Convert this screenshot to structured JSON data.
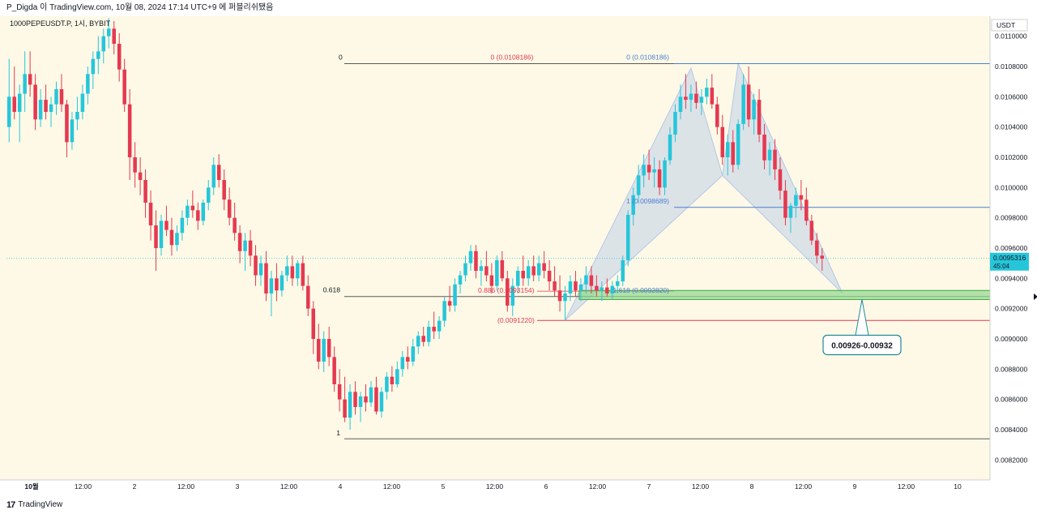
{
  "header": {
    "publish_line": "P_Digda 이 TradingView.com, 10월 08, 2024 17:14 UTC+9 에 퍼블리쉬됐음"
  },
  "footer": {
    "logo_mark": "17",
    "brand": "TradingView"
  },
  "colors": {
    "background": "#fdf9e6",
    "up": "#26c6da",
    "down": "#e53950",
    "pattern_fill": "#b3c8e8",
    "zone_fill": "#8fd98f",
    "fib_line": "#5b5b5b",
    "blue_level": "#4a7fd4",
    "red_level": "#e53950",
    "price_badge": "#26c6da",
    "callout_border": "#1f8a9a"
  },
  "chart_data": {
    "type": "candlestick",
    "symbol_line": "1000PEPEUSDT.P, 1시, BYBIT",
    "currency": "USDT",
    "ylim": [
      0.0081,
      0.0111
    ],
    "y_ticks": [
      "0.0110000",
      "0.0108000",
      "0.0106000",
      "0.0104000",
      "0.0102000",
      "0.0100000",
      "0.0098000",
      "0.0096000",
      "0.0094000",
      "0.0092000",
      "0.0090000",
      "0.0088000",
      "0.0086000",
      "0.0084000",
      "0.0082000"
    ],
    "x_ticks": [
      "10월",
      "12:00",
      "2",
      "12:00",
      "3",
      "12:00",
      "4",
      "12:00",
      "5",
      "12:00",
      "6",
      "12:00",
      "7",
      "12:00",
      "8",
      "12:00",
      "9",
      "12:00",
      "10"
    ],
    "current_price": "0.0095316",
    "countdown": "45:04",
    "fib_labels": {
      "zero": "0",
      "zero_left": "0 (0.0108186)",
      "zero_right": "0 (0.0108186)",
      "one_right": "1 (0.0098689)",
      "level_618": "0.618",
      "level_886": "0.886 (0.0093154)",
      "level_886_right": "1.618 (0.0092820)",
      "red_level": "(0.0091220)",
      "one": "1"
    },
    "levels": {
      "top": 0.0108186,
      "upper_one": 0.0098689,
      "fib_618": 0.00928,
      "bottom": 0.00834,
      "red": 0.009122,
      "blue_level_left": 0.0093154,
      "blue_level_right": 0.009282
    },
    "pattern_points": [
      [
        0.009122,
        "6 08:00"
      ],
      [
        0.01079,
        "7 12:00"
      ],
      [
        0.01008,
        "7 22:00"
      ],
      [
        0.01082,
        "8 00:00"
      ],
      [
        0.0093,
        "9 00:00"
      ]
    ],
    "zone": {
      "low": 0.00926,
      "high": 0.00932,
      "label": "0.00926-0.00932"
    },
    "candles": [
      [
        0.0104,
        0.01085,
        0.0103,
        0.0106
      ],
      [
        0.0106,
        0.0108,
        0.01045,
        0.0105
      ],
      [
        0.0105,
        0.01068,
        0.0103,
        0.01062
      ],
      [
        0.01062,
        0.0109,
        0.0105,
        0.01075
      ],
      [
        0.01075,
        0.0109,
        0.0106,
        0.01068
      ],
      [
        0.01068,
        0.01075,
        0.01038,
        0.01045
      ],
      [
        0.01045,
        0.01065,
        0.0104,
        0.01058
      ],
      [
        0.01058,
        0.01068,
        0.01045,
        0.0105
      ],
      [
        0.0105,
        0.0106,
        0.0104,
        0.01055
      ],
      [
        0.01055,
        0.0107,
        0.01048,
        0.01065
      ],
      [
        0.01065,
        0.01075,
        0.0105,
        0.01055
      ],
      [
        0.01055,
        0.01058,
        0.0102,
        0.0103
      ],
      [
        0.0103,
        0.0105,
        0.01025,
        0.01045
      ],
      [
        0.01045,
        0.0106,
        0.01038,
        0.0105
      ],
      [
        0.0105,
        0.01068,
        0.01045,
        0.01062
      ],
      [
        0.01062,
        0.0108,
        0.01055,
        0.01075
      ],
      [
        0.01075,
        0.0109,
        0.01065,
        0.01085
      ],
      [
        0.01085,
        0.011,
        0.01075,
        0.0109
      ],
      [
        0.0109,
        0.01105,
        0.01082,
        0.011
      ],
      [
        0.011,
        0.01112,
        0.01092,
        0.01105
      ],
      [
        0.01105,
        0.0111,
        0.01088,
        0.01095
      ],
      [
        0.01095,
        0.01102,
        0.0107,
        0.01078
      ],
      [
        0.01078,
        0.01085,
        0.0105,
        0.01055
      ],
      [
        0.01055,
        0.01065,
        0.01005,
        0.0102
      ],
      [
        0.0102,
        0.0103,
        0.01,
        0.0101
      ],
      [
        0.0101,
        0.0102,
        0.00995,
        0.01005
      ],
      [
        0.01005,
        0.01012,
        0.0098,
        0.0099
      ],
      [
        0.0099,
        0.00998,
        0.00965,
        0.00975
      ],
      [
        0.00975,
        0.00985,
        0.00945,
        0.0096
      ],
      [
        0.0096,
        0.00982,
        0.00955,
        0.00978
      ],
      [
        0.00978,
        0.00988,
        0.00968,
        0.00972
      ],
      [
        0.00972,
        0.0098,
        0.00955,
        0.00962
      ],
      [
        0.00962,
        0.00975,
        0.00958,
        0.0097
      ],
      [
        0.0097,
        0.00985,
        0.00965,
        0.0098
      ],
      [
        0.0098,
        0.00992,
        0.00975,
        0.00988
      ],
      [
        0.00988,
        0.00998,
        0.0098,
        0.00985
      ],
      [
        0.00985,
        0.0099,
        0.00972,
        0.00978
      ],
      [
        0.00978,
        0.00992,
        0.00975,
        0.0099
      ],
      [
        0.0099,
        0.01005,
        0.00985,
        0.01
      ],
      [
        0.01,
        0.0102,
        0.00995,
        0.01015
      ],
      [
        0.01015,
        0.01022,
        0.01,
        0.01005
      ],
      [
        0.01005,
        0.01012,
        0.00985,
        0.00992
      ],
      [
        0.00992,
        0.01,
        0.00975,
        0.0098
      ],
      [
        0.0098,
        0.0099,
        0.00965,
        0.0097
      ],
      [
        0.0097,
        0.00975,
        0.0095,
        0.00958
      ],
      [
        0.00958,
        0.0097,
        0.00945,
        0.00965
      ],
      [
        0.00965,
        0.00972,
        0.00948,
        0.00955
      ],
      [
        0.00955,
        0.00962,
        0.00935,
        0.00942
      ],
      [
        0.00942,
        0.00955,
        0.00935,
        0.0095
      ],
      [
        0.0095,
        0.00958,
        0.00925,
        0.0093
      ],
      [
        0.0093,
        0.00945,
        0.00915,
        0.0094
      ],
      [
        0.0094,
        0.0095,
        0.00925,
        0.00932
      ],
      [
        0.00932,
        0.00945,
        0.00928,
        0.00942
      ],
      [
        0.00942,
        0.00955,
        0.00938,
        0.00948
      ],
      [
        0.00948,
        0.00955,
        0.00935,
        0.0094
      ],
      [
        0.0094,
        0.00952,
        0.00935,
        0.0095
      ],
      [
        0.0095,
        0.00955,
        0.00932,
        0.00935
      ],
      [
        0.00935,
        0.00942,
        0.00915,
        0.0092
      ],
      [
        0.0092,
        0.00925,
        0.0089,
        0.009
      ],
      [
        0.009,
        0.0091,
        0.0088,
        0.00885
      ],
      [
        0.00885,
        0.00905,
        0.00878,
        0.009
      ],
      [
        0.009,
        0.00908,
        0.00882,
        0.00888
      ],
      [
        0.00888,
        0.00895,
        0.00865,
        0.0087
      ],
      [
        0.0087,
        0.0088,
        0.00852,
        0.0086
      ],
      [
        0.0086,
        0.00875,
        0.00845,
        0.00848
      ],
      [
        0.00848,
        0.0087,
        0.0084,
        0.00865
      ],
      [
        0.00865,
        0.00872,
        0.0085,
        0.00855
      ],
      [
        0.00855,
        0.00865,
        0.00845,
        0.00862
      ],
      [
        0.00862,
        0.0087,
        0.00852,
        0.00858
      ],
      [
        0.00858,
        0.00872,
        0.00855,
        0.00868
      ],
      [
        0.00868,
        0.00875,
        0.0085,
        0.00852
      ],
      [
        0.00852,
        0.00868,
        0.00848,
        0.00865
      ],
      [
        0.00865,
        0.00878,
        0.0086,
        0.00875
      ],
      [
        0.00875,
        0.00882,
        0.00865,
        0.0087
      ],
      [
        0.0087,
        0.00885,
        0.00868,
        0.0088
      ],
      [
        0.0088,
        0.00892,
        0.00875,
        0.00888
      ],
      [
        0.00888,
        0.00895,
        0.0088,
        0.00885
      ],
      [
        0.00885,
        0.009,
        0.00882,
        0.00895
      ],
      [
        0.00895,
        0.00905,
        0.0089,
        0.00902
      ],
      [
        0.00902,
        0.00908,
        0.00895,
        0.00898
      ],
      [
        0.00898,
        0.00912,
        0.00895,
        0.00908
      ],
      [
        0.00908,
        0.00918,
        0.009,
        0.00905
      ],
      [
        0.00905,
        0.00915,
        0.009,
        0.00912
      ],
      [
        0.00912,
        0.00928,
        0.00908,
        0.00925
      ],
      [
        0.00925,
        0.00935,
        0.00918,
        0.00922
      ],
      [
        0.00922,
        0.0094,
        0.00918,
        0.00936
      ],
      [
        0.00936,
        0.00945,
        0.0093,
        0.00942
      ],
      [
        0.00942,
        0.00955,
        0.00938,
        0.0095
      ],
      [
        0.0095,
        0.00962,
        0.00945,
        0.00958
      ],
      [
        0.00958,
        0.00962,
        0.0094,
        0.00945
      ],
      [
        0.00945,
        0.00952,
        0.00935,
        0.00948
      ],
      [
        0.00948,
        0.00958,
        0.00938,
        0.00942
      ],
      [
        0.00942,
        0.0095,
        0.0093,
        0.00935
      ],
      [
        0.00935,
        0.00955,
        0.00932,
        0.00952
      ],
      [
        0.00952,
        0.00958,
        0.00938,
        0.0094
      ],
      [
        0.0094,
        0.00945,
        0.00918,
        0.00922
      ],
      [
        0.00922,
        0.0094,
        0.00915,
        0.00935
      ],
      [
        0.00935,
        0.00948,
        0.0093,
        0.00945
      ],
      [
        0.00945,
        0.00955,
        0.00935,
        0.0094
      ],
      [
        0.0094,
        0.00952,
        0.00935,
        0.00948
      ],
      [
        0.00948,
        0.00955,
        0.00938,
        0.00942
      ],
      [
        0.00942,
        0.00955,
        0.00938,
        0.0095
      ],
      [
        0.0095,
        0.00958,
        0.0094,
        0.00945
      ],
      [
        0.00945,
        0.00952,
        0.00932,
        0.00938
      ],
      [
        0.00938,
        0.00948,
        0.00928,
        0.00932
      ],
      [
        0.00932,
        0.00942,
        0.00918,
        0.00925
      ],
      [
        0.00925,
        0.00935,
        0.00912,
        0.0093
      ],
      [
        0.0093,
        0.00942,
        0.00925,
        0.00938
      ],
      [
        0.00938,
        0.00945,
        0.00928,
        0.00932
      ],
      [
        0.00932,
        0.0094,
        0.00925,
        0.00936
      ],
      [
        0.00936,
        0.00948,
        0.0093,
        0.00942
      ],
      [
        0.00942,
        0.00948,
        0.0093,
        0.00935
      ],
      [
        0.00935,
        0.00942,
        0.00928,
        0.00932
      ],
      [
        0.00932,
        0.00938,
        0.00925,
        0.00934
      ],
      [
        0.00934,
        0.0094,
        0.00928,
        0.0093
      ],
      [
        0.0093,
        0.00938,
        0.00926,
        0.00935
      ],
      [
        0.00935,
        0.00942,
        0.0093,
        0.00938
      ],
      [
        0.00938,
        0.00955,
        0.00935,
        0.00952
      ],
      [
        0.00952,
        0.00985,
        0.00948,
        0.00982
      ],
      [
        0.00982,
        0.01,
        0.00975,
        0.00995
      ],
      [
        0.00995,
        0.01015,
        0.0099,
        0.01008
      ],
      [
        0.01008,
        0.01022,
        0.01,
        0.01015
      ],
      [
        0.01015,
        0.01025,
        0.01005,
        0.0101
      ],
      [
        0.0101,
        0.0102,
        0.01,
        0.01012
      ],
      [
        0.01012,
        0.01018,
        0.00995,
        0.01
      ],
      [
        0.01,
        0.0102,
        0.00995,
        0.01018
      ],
      [
        0.01018,
        0.0104,
        0.01015,
        0.01035
      ],
      [
        0.01035,
        0.01055,
        0.0103,
        0.0105
      ],
      [
        0.0105,
        0.01068,
        0.01045,
        0.0106
      ],
      [
        0.0106,
        0.01075,
        0.01052,
        0.01058
      ],
      [
        0.01058,
        0.01068,
        0.0105,
        0.01062
      ],
      [
        0.01062,
        0.0107,
        0.01052,
        0.01056
      ],
      [
        0.01056,
        0.01065,
        0.01048,
        0.0106
      ],
      [
        0.0106,
        0.01072,
        0.01055,
        0.01066
      ],
      [
        0.01066,
        0.01075,
        0.01052,
        0.01055
      ],
      [
        0.01055,
        0.0106,
        0.01035,
        0.0104
      ],
      [
        0.0104,
        0.01048,
        0.01015,
        0.0102
      ],
      [
        0.0102,
        0.01035,
        0.01008,
        0.0103
      ],
      [
        0.0103,
        0.01038,
        0.0101,
        0.01015
      ],
      [
        0.01015,
        0.01045,
        0.01012,
        0.01042
      ],
      [
        0.01042,
        0.01075,
        0.01038,
        0.01068
      ],
      [
        0.01068,
        0.0108,
        0.0104,
        0.01045
      ],
      [
        0.01045,
        0.01062,
        0.01035,
        0.01058
      ],
      [
        0.01058,
        0.01065,
        0.0103,
        0.01035
      ],
      [
        0.01035,
        0.01042,
        0.01012,
        0.01018
      ],
      [
        0.01018,
        0.0103,
        0.01008,
        0.01025
      ],
      [
        0.01025,
        0.01032,
        0.01005,
        0.01012
      ],
      [
        0.01012,
        0.0102,
        0.00992,
        0.00998
      ],
      [
        0.00998,
        0.01005,
        0.00975,
        0.0098
      ],
      [
        0.0098,
        0.0099,
        0.0097,
        0.00988
      ],
      [
        0.00988,
        0.01,
        0.0098,
        0.00995
      ],
      [
        0.00995,
        0.01005,
        0.00985,
        0.00992
      ],
      [
        0.00992,
        0.01,
        0.00975,
        0.00978
      ],
      [
        0.00978,
        0.00982,
        0.00962,
        0.00965
      ],
      [
        0.00965,
        0.0097,
        0.0095,
        0.00955
      ],
      [
        0.00955,
        0.0096,
        0.00945,
        0.00953
      ]
    ]
  }
}
